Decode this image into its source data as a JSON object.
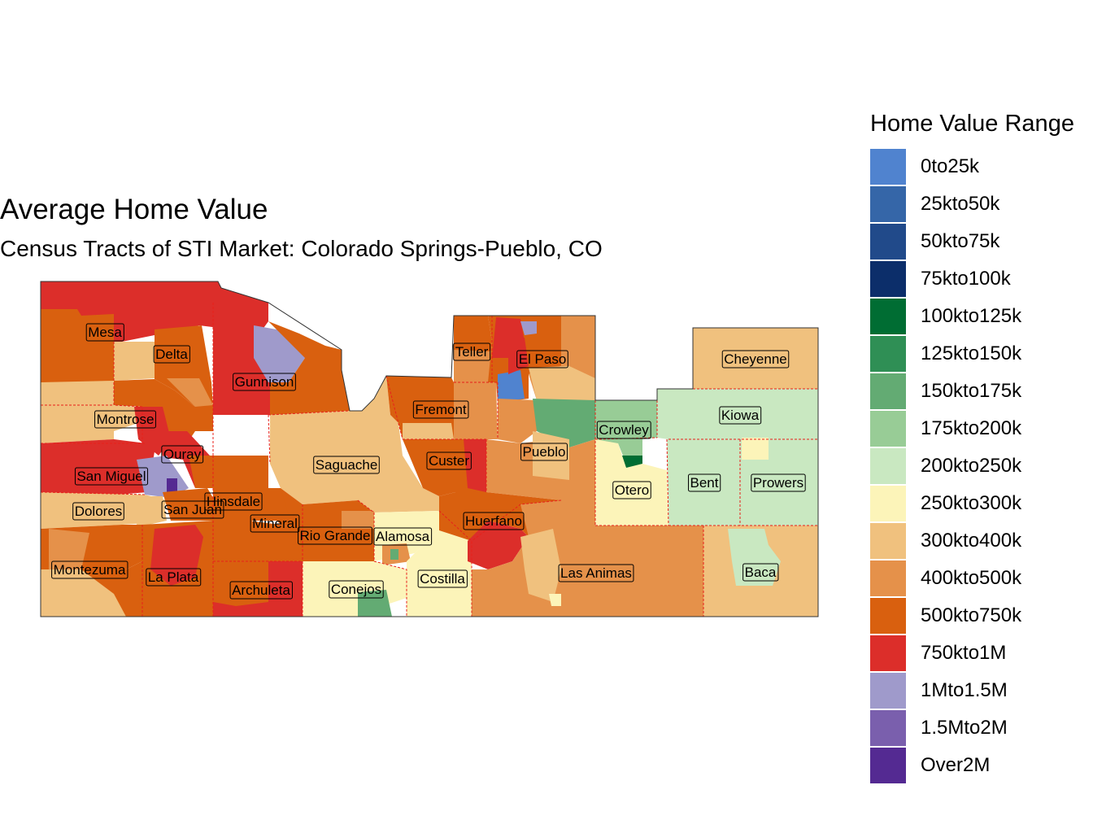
{
  "title": "Average Home Value",
  "subtitle": "Census Tracts of STI Market: Colorado Springs-Pueblo, CO",
  "legend": {
    "title": "Home Value Range",
    "items": [
      {
        "label": "0to25k",
        "color": "#5083cf"
      },
      {
        "label": "25kto50k",
        "color": "#3566a8"
      },
      {
        "label": "50kto75k",
        "color": "#214a8a"
      },
      {
        "label": "75kto100k",
        "color": "#0c2e6a"
      },
      {
        "label": "100kto125k",
        "color": "#006d33"
      },
      {
        "label": "125kto150k",
        "color": "#2f8f55"
      },
      {
        "label": "150kto175k",
        "color": "#63ab73"
      },
      {
        "label": "175kto200k",
        "color": "#98cc96"
      },
      {
        "label": "200kto250k",
        "color": "#c9e8c1"
      },
      {
        "label": "250kto300k",
        "color": "#fcf4b9"
      },
      {
        "label": "300kto400k",
        "color": "#f0c17e"
      },
      {
        "label": "400kto500k",
        "color": "#e5914a"
      },
      {
        "label": "500kto750k",
        "color": "#d9600f"
      },
      {
        "label": "750kto1M",
        "color": "#dc2e2a"
      },
      {
        "label": "1Mto1.5M",
        "color": "#9f9acb"
      },
      {
        "label": "1.5Mto2M",
        "color": "#7a5fad"
      },
      {
        "label": "Over2M",
        "color": "#542a92"
      }
    ]
  },
  "counties": [
    {
      "name": "Mesa"
    },
    {
      "name": "Delta"
    },
    {
      "name": "Gunnison"
    },
    {
      "name": "Teller"
    },
    {
      "name": "El Paso"
    },
    {
      "name": "Cheyenne"
    },
    {
      "name": "Fremont"
    },
    {
      "name": "Kiowa"
    },
    {
      "name": "Montrose"
    },
    {
      "name": "Crowley"
    },
    {
      "name": "Ouray"
    },
    {
      "name": "Saguache"
    },
    {
      "name": "Custer"
    },
    {
      "name": "Pueblo"
    },
    {
      "name": "San Miguel"
    },
    {
      "name": "Otero"
    },
    {
      "name": "Bent"
    },
    {
      "name": "Prowers"
    },
    {
      "name": "Hinsdale"
    },
    {
      "name": "Dolores"
    },
    {
      "name": "San Juan"
    },
    {
      "name": "Huerfano"
    },
    {
      "name": "Mineral"
    },
    {
      "name": "Rio Grande"
    },
    {
      "name": "Alamosa"
    },
    {
      "name": "Las Animas"
    },
    {
      "name": "Montezuma"
    },
    {
      "name": "La Plata"
    },
    {
      "name": "Baca"
    },
    {
      "name": "Costilla"
    },
    {
      "name": "Archuleta"
    },
    {
      "name": "Conejos"
    }
  ]
}
